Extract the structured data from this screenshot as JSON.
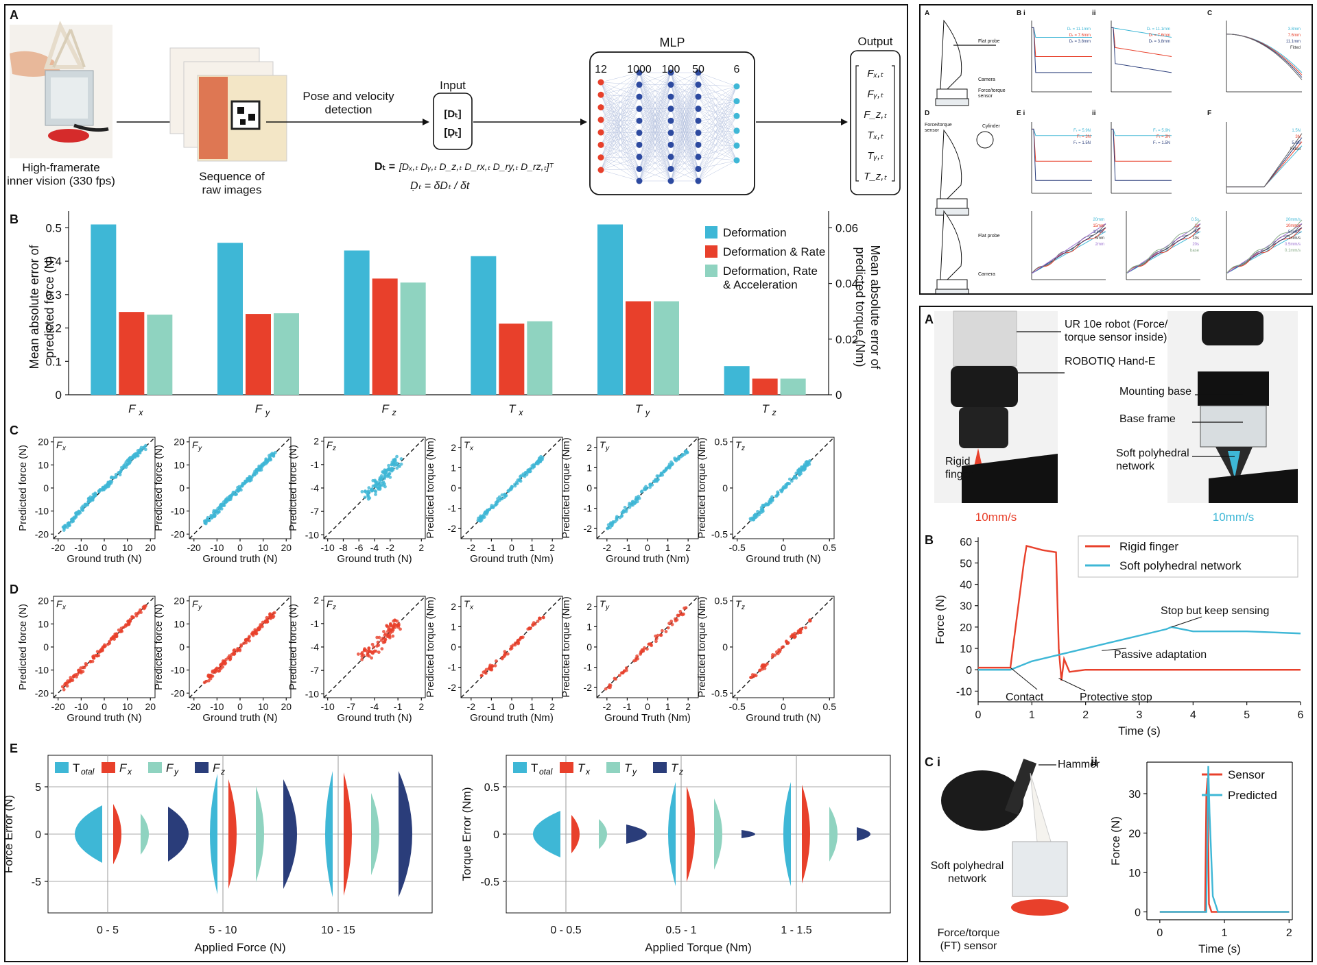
{
  "colors": {
    "blue": "#3eb7d6",
    "red": "#e8402b",
    "teal": "#8fd3c0",
    "navy": "#2a3d7a"
  },
  "left": {
    "label_a": "A",
    "label_b": "B",
    "label_c": "C",
    "label_d": "D",
    "label_e": "E",
    "pipeline": {
      "caption_device": "High-framerate\ninner vision (330 fps)",
      "caption_images": "Sequence of\nraw images",
      "pose_text": "Pose and velocity\ndetection",
      "input_title": "Input",
      "input_top": "Dₜ",
      "input_bottom": "Ḍₜ",
      "eq1_lhs": "Dₜ =",
      "eq1_rhs": "[Dₓ,ₜ  Dᵧ,ₜ  D_z,ₜ  D_rx,ₜ  D_ry,ₜ  D_rz,ₜ]ᵀ",
      "eq2": "Ḍₜ = δDₜ / δt",
      "mlp_title": "MLP",
      "layers": [
        "12",
        "1000",
        "100",
        "50",
        "6"
      ],
      "output_title": "Output",
      "outputs": [
        "Fₓ,ₜ",
        "Fᵧ,ₜ",
        "F_z,ₜ",
        "Tₓ,ₜ",
        "Tᵧ,ₜ",
        "T_z,ₜ"
      ]
    },
    "bar": {
      "ylabel_left": "Mean absolute error of\npredicted force (N)",
      "ylabel_right": "Mean absolute error of\npredicted torque (Nm)"
    },
    "scatter_c": {
      "titles": [
        "Fx",
        "Fy",
        "Fz",
        "Tx",
        "Ty",
        "Tz"
      ]
    },
    "violin": {
      "force_ylabel": "Force Error (N)",
      "force_xlabel": "Applied Force (N)",
      "force_ticks": [
        "0 - 5",
        "5 - 10",
        "10 - 15"
      ],
      "force_yticks": [
        "5",
        "0",
        "-5"
      ],
      "force_legend": [
        "Total",
        "Fx",
        "Fy",
        "Fz"
      ],
      "torque_ylabel": "Torque Error (Nm)",
      "torque_xlabel": "Applied Torque (Nm)",
      "torque_ticks": [
        "0 - 0.5",
        "0.5 - 1",
        "1 - 1.5"
      ],
      "torque_yticks": [
        "0.5",
        "0",
        "-0.5"
      ],
      "torque_legend": [
        "Total",
        "Tx",
        "Ty",
        "Tz"
      ]
    }
  },
  "chart_data": [
    {
      "type": "bar",
      "id": "B",
      "categories": [
        "Fx",
        "Fy",
        "Fz",
        "Tx",
        "Ty",
        "Tz"
      ],
      "series": [
        {
          "name": "Deformation",
          "values": [
            0.51,
            0.455,
            0.432,
            0.415,
            0.51,
            0.0103
          ]
        },
        {
          "name": "Deformation & Rate",
          "values": [
            0.248,
            0.242,
            0.348,
            0.213,
            0.28,
            0.0058
          ]
        },
        {
          "name": "Deformation, Rate & Acceleration",
          "values": [
            0.24,
            0.244,
            0.336,
            0.22,
            0.28,
            0.0058
          ]
        }
      ],
      "ylim": [
        0,
        0.55
      ],
      "yticks": [
        0,
        0.1,
        0.2,
        0.3,
        0.4,
        0.5
      ],
      "y2lim": [
        0,
        0.066
      ],
      "y2ticks": [
        0,
        0.02,
        0.04,
        0.06
      ],
      "legend": "top-right"
    },
    {
      "type": "scatter",
      "id": "C",
      "color": "blue",
      "panels": [
        {
          "title": "Fx",
          "xlabel": "Ground truth (N)",
          "ylabel": "Predicted force (N)",
          "lim": [
            -22,
            22
          ],
          "ticks": [
            -20,
            -10,
            0,
            10,
            20
          ],
          "x": [
            -18,
            -12,
            -6,
            0,
            6,
            12,
            18
          ],
          "y": [
            -18,
            -12,
            -5,
            0,
            6,
            13,
            18
          ]
        },
        {
          "title": "Fy",
          "xlabel": "Ground truth (N)",
          "ylabel": "Predicted force (N)",
          "lim": [
            -22,
            22
          ],
          "ticks": [
            -20,
            -10,
            0,
            10,
            20
          ],
          "x": [
            -15,
            -10,
            -5,
            0,
            5,
            10,
            15
          ],
          "y": [
            -15,
            -10,
            -5,
            0,
            5,
            10,
            15
          ]
        },
        {
          "title": "Fz",
          "xlabel": "Ground truth (N)",
          "ylabel": "Predicted force (N)",
          "lim": [
            -10.5,
            2.5
          ],
          "ticks": [
            -10,
            -7,
            -4,
            -1,
            2
          ],
          "xticks": [
            -10,
            -8,
            -6,
            -4,
            -2,
            2
          ],
          "x": [
            -5,
            -4,
            -3,
            -2,
            -1
          ],
          "y": [
            -5,
            -3.8,
            -3,
            -1.5,
            -0.5
          ]
        },
        {
          "title": "Tx",
          "xlabel": "Ground truth (Nm)",
          "ylabel": "Predicted torque (Nm)",
          "lim": [
            -2.5,
            2.5
          ],
          "ticks": [
            -2,
            -1,
            0,
            1,
            2
          ],
          "x": [
            -1.6,
            -1,
            0,
            1,
            1.5
          ],
          "y": [
            -1.6,
            -1,
            0,
            1,
            1.5
          ]
        },
        {
          "title": "Ty",
          "xlabel": "Ground truth (Nm)",
          "ylabel": "Predicted torque (Nm)",
          "lim": [
            -2.5,
            2.5
          ],
          "ticks": [
            -2,
            -1,
            0,
            1,
            2
          ],
          "x": [
            -2,
            -1,
            0,
            1,
            2
          ],
          "y": [
            -2,
            -1,
            0,
            1,
            1.9
          ]
        },
        {
          "title": "Tz",
          "xlabel": "Ground truth (N)",
          "ylabel": "Predicted torque (Nm)",
          "lim": [
            -0.55,
            0.55
          ],
          "ticks": [
            -0.5,
            0,
            0.5
          ],
          "x": [
            -0.35,
            -0.2,
            0,
            0.2,
            0.3
          ],
          "y": [
            -0.35,
            -0.2,
            0,
            0.2,
            0.3
          ]
        }
      ]
    },
    {
      "type": "scatter",
      "id": "D",
      "color": "red",
      "panels": [
        {
          "title": "Fx",
          "xlabel": "Ground truth (N)",
          "ylabel": "Predicted force (N)",
          "lim": [
            -22,
            22
          ],
          "ticks": [
            -20,
            -10,
            0,
            10,
            20
          ],
          "x": [
            -18,
            -9,
            0,
            9,
            18
          ],
          "y": [
            -18,
            -9,
            0,
            9,
            18
          ]
        },
        {
          "title": "Fy",
          "xlabel": "Ground truth (N)",
          "ylabel": "Predicted force (N)",
          "lim": [
            -22,
            22
          ],
          "ticks": [
            -20,
            -10,
            0,
            10,
            20
          ],
          "x": [
            -15,
            -8,
            0,
            8,
            15
          ],
          "y": [
            -15,
            -8,
            0,
            8,
            15
          ]
        },
        {
          "title": "Fz",
          "xlabel": "Ground truth (N)",
          "ylabel": "Predicted force (N)",
          "lim": [
            -10.5,
            2.5
          ],
          "ticks": [
            -10,
            -7,
            -4,
            -1,
            2
          ],
          "xticks": [
            -10,
            -7,
            -4,
            -1,
            2
          ],
          "x": [
            -6,
            -4,
            -2,
            -1
          ],
          "y": [
            -5.5,
            -4,
            -2,
            -1
          ]
        },
        {
          "title": "Tx",
          "xlabel": "Ground truth (Nm)",
          "ylabel": "Predicted torque (Nm)",
          "lim": [
            -2.5,
            2.5
          ],
          "ticks": [
            -2,
            -1,
            0,
            1,
            2
          ],
          "x": [
            -1.6,
            0,
            1.5
          ],
          "y": [
            -1.6,
            0,
            1.5
          ]
        },
        {
          "title": "Ty",
          "xlabel": "Ground Truth (Nm)",
          "ylabel": "Predicted torque (Nm)",
          "lim": [
            -2.5,
            2.5
          ],
          "ticks": [
            -2,
            -1,
            0,
            1,
            2
          ],
          "x": [
            -2,
            0,
            2
          ],
          "y": [
            -2,
            0,
            2
          ]
        },
        {
          "title": "Tz",
          "xlabel": "Ground truth (N)",
          "ylabel": "Predicted torque (Nm)",
          "lim": [
            -0.55,
            0.55
          ],
          "ticks": [
            -0.5,
            0,
            0.5
          ],
          "x": [
            -0.35,
            0,
            0.3
          ],
          "y": [
            -0.35,
            0,
            0.3
          ]
        }
      ]
    },
    {
      "type": "line",
      "id": "right-B",
      "title": "",
      "xlabel": "Time (s)",
      "ylabel": "Force (N)",
      "xlim": [
        0,
        6
      ],
      "ylim": [
        -15,
        62
      ],
      "xticks": [
        0,
        1,
        2,
        3,
        4,
        5,
        6
      ],
      "yticks": [
        -10,
        0,
        10,
        20,
        30,
        40,
        50,
        60
      ],
      "series": [
        {
          "name": "Rigid finger",
          "x": [
            0,
            0.6,
            0.85,
            0.9,
            1.2,
            1.45,
            1.5,
            1.55,
            1.6,
            1.7,
            2,
            6
          ],
          "y": [
            1,
            1,
            50,
            58,
            56,
            55,
            10,
            -5,
            5,
            -1,
            0,
            0
          ]
        },
        {
          "name": "Soft polyhedral network",
          "x": [
            0,
            0.6,
            1,
            1.5,
            2,
            2.5,
            3,
            3.5,
            3.6,
            4,
            5,
            6
          ],
          "y": [
            0,
            0,
            4,
            7,
            10,
            13,
            16,
            19,
            20,
            18,
            18,
            17
          ]
        }
      ],
      "annotations": [
        "Stop but keep sensing",
        "Passive adaptation",
        "Contact",
        "Protective stop"
      ],
      "legend": "top-right"
    },
    {
      "type": "line",
      "id": "right-Cii",
      "xlabel": "Time (s)",
      "ylabel": "Force (N)",
      "xlim": [
        -0.2,
        2.05
      ],
      "ylim": [
        -2,
        38
      ],
      "xticks": [
        0,
        1,
        2
      ],
      "yticks": [
        0,
        10,
        20,
        30
      ],
      "series": [
        {
          "name": "Sensor",
          "x": [
            0,
            0.7,
            0.72,
            0.74,
            0.76,
            0.8,
            2
          ],
          "y": [
            0,
            0,
            30,
            34,
            2,
            0,
            0
          ]
        },
        {
          "name": "Predicted",
          "x": [
            0,
            0.72,
            0.75,
            0.77,
            0.82,
            0.9,
            2
          ],
          "y": [
            0,
            0,
            37,
            25,
            4,
            0,
            0
          ]
        }
      ],
      "legend": "top-right"
    }
  ],
  "right": {
    "top_labels": {
      "a": "A",
      "bi": "B i",
      "bii": "ii",
      "c": "C",
      "d": "D",
      "ei": "E i",
      "eii": "ii",
      "f": "F"
    },
    "top_curves_b": [
      "Dₜ = 11.1mm",
      "Dₜ = 7.6mm",
      "Dₜ = 3.8mm"
    ],
    "top_curves_e": [
      "Fₜ = 5.9N",
      "Fₜ = 3N",
      "Fₜ = 1.5N"
    ],
    "top_legend_c": [
      "3.8mm",
      "7.6mm",
      "11.1mm",
      "Fitted"
    ],
    "top_legend_f": [
      "1.5N",
      "3N",
      "5.9N",
      "Fitted"
    ],
    "top_legend_g1": [
      "20mm",
      "15mm",
      "10mm",
      "5mm",
      "2mm"
    ],
    "top_legend_g2": [
      "0.5s",
      "1s",
      "5s",
      "10s",
      "20s",
      "base"
    ],
    "top_legend_g3": [
      "20mm/s",
      "10mm/s",
      "5mm/s",
      "1mm/s",
      "0.5mm/s",
      "0.1mm/s"
    ],
    "top_tag_probe": "Flat probe",
    "top_tag_camera": "Camera",
    "top_tag_ft": "Force/torque\nsensor",
    "top_tag_cylinder": "Cylinder",
    "panel_a": "A",
    "callouts": [
      "UR 10e robot (Force/\ntorque sensor inside)",
      "ROBOTIQ Hand-E",
      "Mounting base",
      "Base frame",
      "Soft polyhedral\nnetwork"
    ],
    "rigid_finger": "Rigid\nfinger",
    "speed_left": "10mm/s",
    "speed_right": "10mm/s",
    "panel_b": "B",
    "panel_ci": "C i",
    "panel_cii": "ii",
    "hammer": "Hammer",
    "soft_net": "Soft polyhedral\nnetwork",
    "ft_sensor": "Force/torque\n(FT) sensor"
  }
}
